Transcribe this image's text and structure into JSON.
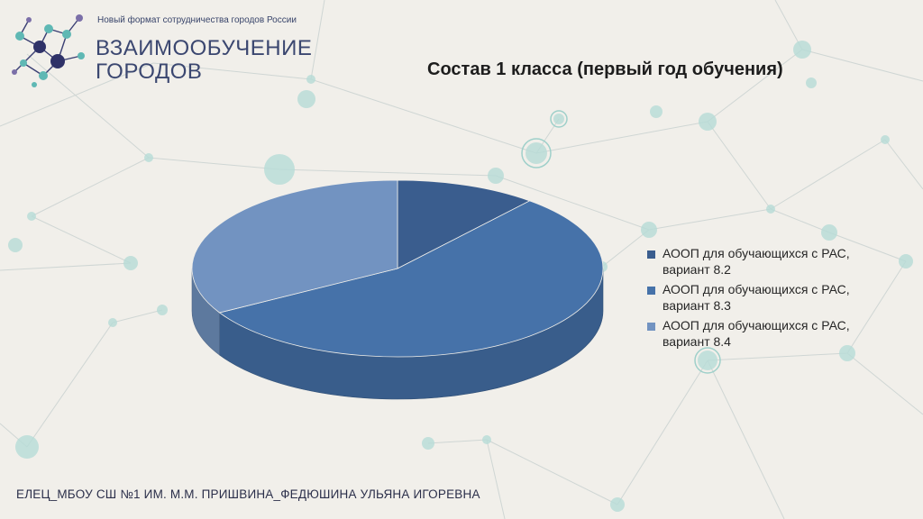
{
  "header": {
    "tagline": "Новый формат сотрудничества городов России",
    "brand_line1": "ВЗАИМООБУЧЕНИЕ",
    "brand_line2": "ГОРОДОВ",
    "logo_icon": "molecule-network-icon"
  },
  "slide": {
    "title": "Состав 1 класса (первый год обучения)",
    "footer": "ЕЛЕЦ_МБОУ СШ №1 ИМ. М.М. ПРИШВИНА_ФЕДЮШИНА УЛЬЯНА ИГОРЕВНА"
  },
  "chart_data": {
    "type": "pie",
    "style": "3d",
    "categories": [
      "АООП для обучающихся с РАС, вариант 8.2",
      "АООП для обучающихся с РАС, вариант 8.3",
      "АООП для обучающихся с РАС, вариант 8.4"
    ],
    "values": [
      1,
      5,
      3
    ],
    "colors": [
      "#3a5d8e",
      "#4672a9",
      "#7293c1"
    ],
    "legend_position": "right",
    "title": "Состав 1 класса (первый год обучения)"
  }
}
